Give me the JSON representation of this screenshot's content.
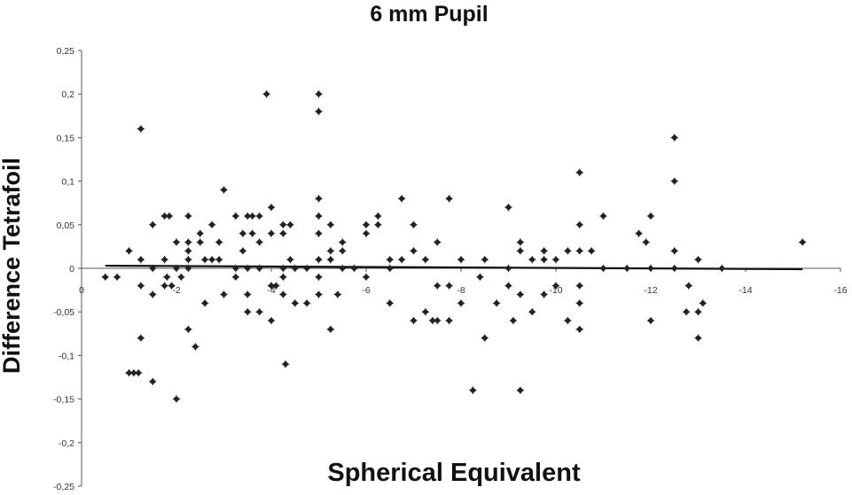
{
  "chart_data": {
    "type": "scatter",
    "title": "6 mm Pupil",
    "xlabel": "Spherical Equivalent",
    "ylabel": "Difference Tetrafoil",
    "xlim": [
      0,
      -16
    ],
    "ylim": [
      -0.25,
      0.25
    ],
    "x_ticks": [
      0,
      -2,
      -4,
      -6,
      -8,
      -10,
      -12,
      -14,
      -16
    ],
    "x_tick_labels": [
      "0",
      "-2",
      "-4",
      "-6",
      "-8",
      "-10",
      "-12",
      "-14",
      "-16"
    ],
    "y_ticks": [
      0.25,
      0.2,
      0.15,
      0.1,
      0.05,
      0,
      -0.05,
      -0.1,
      -0.15,
      -0.2,
      -0.25
    ],
    "y_tick_labels": [
      "0,25",
      "0,2",
      "0,15",
      "0,1",
      "0,05",
      "0",
      "-0,05",
      "-0,1",
      "-0,15",
      "-0,2",
      "-0,25"
    ],
    "grid": false,
    "legend": false,
    "marker_color": "#222222",
    "trendline": {
      "x": [
        -0.5,
        -15.2
      ],
      "y": [
        0.003,
        -0.001
      ]
    },
    "points": [
      [
        -0.5,
        -0.01
      ],
      [
        -0.75,
        -0.01
      ],
      [
        -1.0,
        0.02
      ],
      [
        -1.0,
        -0.12
      ],
      [
        -1.1,
        -0.12
      ],
      [
        -1.2,
        -0.12
      ],
      [
        -1.25,
        0.16
      ],
      [
        -1.25,
        0.01
      ],
      [
        -1.25,
        -0.02
      ],
      [
        -1.25,
        -0.08
      ],
      [
        -1.5,
        -0.13
      ],
      [
        -1.5,
        0.05
      ],
      [
        -1.5,
        -0.03
      ],
      [
        -1.5,
        0.0
      ],
      [
        -1.75,
        0.06
      ],
      [
        -1.75,
        -0.02
      ],
      [
        -1.75,
        0.01
      ],
      [
        -1.8,
        -0.01
      ],
      [
        -1.85,
        0.06
      ],
      [
        -1.9,
        -0.02
      ],
      [
        -2.0,
        0.03
      ],
      [
        -2.0,
        -0.15
      ],
      [
        -2.0,
        0.0
      ],
      [
        -2.1,
        -0.01
      ],
      [
        -2.25,
        0.06
      ],
      [
        -2.25,
        0.03
      ],
      [
        -2.25,
        0.01
      ],
      [
        -2.25,
        0.02
      ],
      [
        -2.25,
        0.0
      ],
      [
        -2.25,
        -0.07
      ],
      [
        -2.4,
        -0.09
      ],
      [
        -2.5,
        0.03
      ],
      [
        -2.5,
        0.04
      ],
      [
        -2.6,
        0.01
      ],
      [
        -2.6,
        -0.04
      ],
      [
        -2.75,
        0.05
      ],
      [
        -2.75,
        0.01
      ],
      [
        -2.9,
        0.03
      ],
      [
        -2.9,
        0.01
      ],
      [
        -3.0,
        -0.03
      ],
      [
        -3.0,
        0.09
      ],
      [
        -3.25,
        0.06
      ],
      [
        -3.25,
        0.0
      ],
      [
        -3.25,
        -0.01
      ],
      [
        -3.4,
        0.02
      ],
      [
        -3.4,
        0.04
      ],
      [
        -3.5,
        -0.05
      ],
      [
        -3.5,
        0.06
      ],
      [
        -3.5,
        0.0
      ],
      [
        -3.5,
        -0.03
      ],
      [
        -3.6,
        0.06
      ],
      [
        -3.6,
        0.04
      ],
      [
        -3.75,
        0.06
      ],
      [
        -3.75,
        0.03
      ],
      [
        -3.75,
        0.0
      ],
      [
        -3.75,
        -0.05
      ],
      [
        -3.9,
        0.2
      ],
      [
        -4.0,
        0.07
      ],
      [
        -4.0,
        0.04
      ],
      [
        -4.0,
        -0.02
      ],
      [
        -4.0,
        -0.02
      ],
      [
        -4.0,
        -0.06
      ],
      [
        -4.1,
        -0.02
      ],
      [
        -4.25,
        0.05
      ],
      [
        -4.25,
        0.04
      ],
      [
        -4.25,
        0.0
      ],
      [
        -4.25,
        -0.01
      ],
      [
        -4.25,
        -0.03
      ],
      [
        -4.3,
        -0.11
      ],
      [
        -4.4,
        0.05
      ],
      [
        -4.4,
        0.01
      ],
      [
        -4.5,
        0.0
      ],
      [
        -4.5,
        -0.04
      ],
      [
        -4.75,
        0.0
      ],
      [
        -4.75,
        -0.04
      ],
      [
        -5.0,
        0.2
      ],
      [
        -5.0,
        0.18
      ],
      [
        -5.0,
        0.08
      ],
      [
        -5.0,
        0.06
      ],
      [
        -5.0,
        0.04
      ],
      [
        -5.0,
        0.01
      ],
      [
        -5.0,
        -0.01
      ],
      [
        -5.0,
        -0.03
      ],
      [
        -5.25,
        0.05
      ],
      [
        -5.25,
        0.02
      ],
      [
        -5.25,
        0.01
      ],
      [
        -5.25,
        -0.07
      ],
      [
        -5.4,
        -0.03
      ],
      [
        -5.5,
        0.03
      ],
      [
        -5.5,
        0.02
      ],
      [
        -5.5,
        0.0
      ],
      [
        -5.75,
        0.0
      ],
      [
        -6.0,
        0.05
      ],
      [
        -6.0,
        0.04
      ],
      [
        -6.0,
        -0.01
      ],
      [
        -6.25,
        0.06
      ],
      [
        -6.25,
        0.05
      ],
      [
        -6.5,
        0.0
      ],
      [
        -6.5,
        -0.04
      ],
      [
        -6.5,
        0.01
      ],
      [
        -6.75,
        0.08
      ],
      [
        -6.75,
        0.01
      ],
      [
        -7.0,
        0.05
      ],
      [
        -7.0,
        0.02
      ],
      [
        -7.0,
        -0.06
      ],
      [
        -7.25,
        0.01
      ],
      [
        -7.25,
        -0.05
      ],
      [
        -7.4,
        -0.06
      ],
      [
        -7.5,
        0.03
      ],
      [
        -7.5,
        -0.02
      ],
      [
        -7.5,
        -0.06
      ],
      [
        -7.75,
        0.08
      ],
      [
        -7.75,
        -0.02
      ],
      [
        -7.75,
        -0.06
      ],
      [
        -8.0,
        0.01
      ],
      [
        -8.0,
        -0.04
      ],
      [
        -8.25,
        -0.14
      ],
      [
        -8.4,
        -0.01
      ],
      [
        -8.5,
        0.01
      ],
      [
        -8.5,
        -0.08
      ],
      [
        -8.75,
        -0.04
      ],
      [
        -9.0,
        0.07
      ],
      [
        -9.0,
        0.0
      ],
      [
        -9.0,
        -0.02
      ],
      [
        -9.1,
        -0.06
      ],
      [
        -9.25,
        0.03
      ],
      [
        -9.25,
        0.02
      ],
      [
        -9.25,
        -0.03
      ],
      [
        -9.25,
        -0.14
      ],
      [
        -9.5,
        0.01
      ],
      [
        -9.5,
        -0.05
      ],
      [
        -9.75,
        0.02
      ],
      [
        -9.75,
        0.01
      ],
      [
        -9.75,
        -0.03
      ],
      [
        -10.0,
        0.01
      ],
      [
        -10.0,
        -0.02
      ],
      [
        -10.25,
        0.02
      ],
      [
        -10.25,
        -0.06
      ],
      [
        -10.5,
        0.11
      ],
      [
        -10.5,
        0.05
      ],
      [
        -10.5,
        0.02
      ],
      [
        -10.5,
        -0.02
      ],
      [
        -10.5,
        -0.04
      ],
      [
        -10.5,
        -0.07
      ],
      [
        -10.75,
        0.02
      ],
      [
        -11.0,
        0.06
      ],
      [
        -11.0,
        0.0
      ],
      [
        -11.5,
        0.0
      ],
      [
        -11.75,
        0.04
      ],
      [
        -12.0,
        0.06
      ],
      [
        -12.0,
        0.0
      ],
      [
        -12.0,
        -0.06
      ],
      [
        -12.5,
        0.15
      ],
      [
        -12.5,
        0.02
      ],
      [
        -12.5,
        0.0
      ],
      [
        -12.75,
        -0.05
      ],
      [
        -13.0,
        0.01
      ],
      [
        -13.5,
        0.0
      ],
      [
        -11.9,
        0.03
      ],
      [
        -12.5,
        0.1
      ],
      [
        -12.8,
        -0.02
      ],
      [
        -13.0,
        -0.05
      ],
      [
        -13.1,
        -0.04
      ],
      [
        -13.0,
        -0.08
      ],
      [
        -15.2,
        0.03
      ]
    ]
  }
}
